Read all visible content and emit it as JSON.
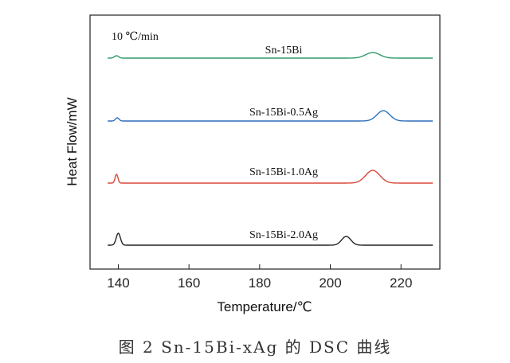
{
  "chart_data": {
    "type": "line",
    "xlabel": "Temperature/℃",
    "ylabel": "Heat Flow/mW",
    "annotation": "10 ℃/min",
    "xlim": [
      132,
      231
    ],
    "xticks": [
      140,
      160,
      180,
      200,
      220
    ],
    "grid": false,
    "series": [
      {
        "name": "Sn-15Bi",
        "color": "#2e9a6a",
        "baseline": 0,
        "peaks": [
          {
            "x": 139.5,
            "height": 3,
            "width": 0.6
          },
          {
            "x": 212,
            "height": 7,
            "width": 2.0
          }
        ]
      },
      {
        "name": "Sn-15Bi-0.5Ag",
        "color": "#2f6fba",
        "baseline": 0,
        "peaks": [
          {
            "x": 139.7,
            "height": 4,
            "width": 0.5
          },
          {
            "x": 215,
            "height": 13,
            "width": 1.8
          }
        ]
      },
      {
        "name": "Sn-15Bi-1.0Ag",
        "color": "#d9473a",
        "baseline": 0,
        "peaks": [
          {
            "x": 139.5,
            "height": 11,
            "width": 0.4
          },
          {
            "x": 212,
            "height": 16,
            "width": 2.0
          }
        ]
      },
      {
        "name": "Sn-15Bi-2.0Ag",
        "color": "#222222",
        "baseline": 0,
        "peaks": [
          {
            "x": 140,
            "height": 15,
            "width": 0.6
          },
          {
            "x": 204.5,
            "height": 11,
            "width": 1.3
          }
        ]
      }
    ]
  },
  "caption": {
    "text": "图 2   Sn-15Bi-xAg 的 DSC 曲线"
  }
}
